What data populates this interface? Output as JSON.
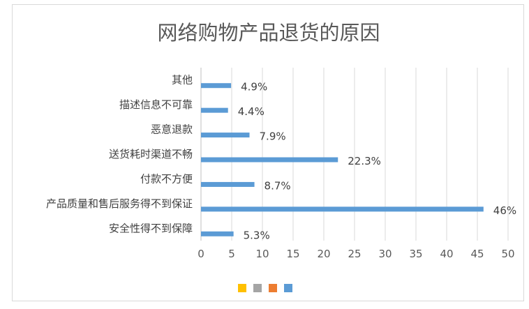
{
  "chart_data": {
    "type": "bar",
    "orientation": "horizontal",
    "title": "网络购物产品退货的原因",
    "categories": [
      "其他",
      "描述信息不可靠",
      "恶意退款",
      "送货耗时渠道不畅",
      "付款不方便",
      "产品质量和售后服务得不到保证",
      "安全性得不到保障"
    ],
    "values": [
      4.9,
      4.4,
      7.9,
      22.3,
      8.7,
      46,
      5.3
    ],
    "data_labels": [
      "4.9%",
      "4.4%",
      "7.9%",
      "22.3%",
      "8.7%",
      "46%",
      "5.3%"
    ],
    "xlim": [
      0,
      50
    ],
    "xticks": [
      0,
      5,
      10,
      15,
      20,
      25,
      30,
      35,
      40,
      45,
      50
    ],
    "bar_color": "#5b9bd5",
    "grid": true,
    "grid_axis": "x",
    "legend_position": "bottom",
    "legend_colors": [
      "#ffc000",
      "#a5a5a5",
      "#ed7d31",
      "#5b9bd5"
    ]
  }
}
